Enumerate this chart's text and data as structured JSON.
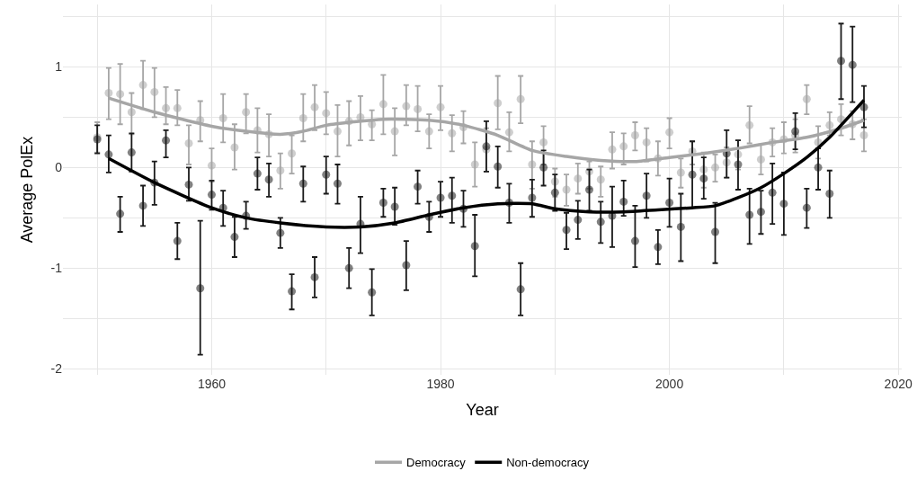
{
  "chart_data": {
    "type": "scatter",
    "xlabel": "Year",
    "ylabel": "Average PolEx",
    "xlim": [
      1947,
      2020.3
    ],
    "ylim": [
      -2.06,
      1.62
    ],
    "xticks": [
      {
        "value": 1950,
        "label": null
      },
      1960,
      {
        "value": 1970,
        "label": null
      },
      1980,
      {
        "value": 1990,
        "label": null
      },
      2000,
      {
        "value": 2010,
        "label": null
      },
      2020
    ],
    "yticks": [
      -2,
      {
        "value": -1.5,
        "label": null
      },
      -1,
      {
        "value": -0.5,
        "label": null
      },
      0,
      {
        "value": 0.5,
        "label": null
      },
      1,
      {
        "value": 1.5,
        "label": null
      }
    ],
    "grid": true,
    "legend": "bottom",
    "x": [
      1950,
      1951,
      1952,
      1953,
      1954,
      1955,
      1956,
      1957,
      1958,
      1959,
      1960,
      1961,
      1962,
      1963,
      1964,
      1965,
      1966,
      1967,
      1968,
      1969,
      1970,
      1971,
      1972,
      1973,
      1974,
      1975,
      1976,
      1977,
      1978,
      1979,
      1980,
      1981,
      1982,
      1983,
      1984,
      1985,
      1986,
      1987,
      1988,
      1989,
      1990,
      1991,
      1992,
      1993,
      1994,
      1995,
      1996,
      1997,
      1998,
      1999,
      2000,
      2001,
      2002,
      2003,
      2004,
      2005,
      2006,
      2007,
      2008,
      2009,
      2010,
      2011,
      2012,
      2013,
      2014,
      2015,
      2016,
      2017
    ],
    "series": [
      {
        "marker": "circle",
        "color": "#a6a6a6",
        "values": [
          0.3,
          0.74,
          0.73,
          0.55,
          0.82,
          0.75,
          0.59,
          0.59,
          0.24,
          0.47,
          0.02,
          0.49,
          0.2,
          0.55,
          0.37,
          0.33,
          -0.03,
          0.14,
          0.49,
          0.6,
          0.54,
          0.36,
          0.46,
          0.5,
          0.43,
          0.63,
          0.36,
          0.61,
          0.58,
          0.36,
          0.6,
          0.34,
          0.4,
          0.03,
          0.18,
          0.64,
          0.35,
          0.68,
          0.03,
          0.25,
          -0.14,
          -0.22,
          -0.11,
          -0.04,
          -0.12,
          0.18,
          0.21,
          0.32,
          0.25,
          0.09,
          0.35,
          -0.05,
          0.16,
          -0.02,
          0.0,
          0.05,
          0.13,
          0.42,
          0.08,
          0.25,
          0.28,
          0.32,
          0.68,
          0.25,
          0.42,
          0.48,
          0.43,
          0.32
        ],
        "errors": [
          [
            0.15,
            0.45
          ],
          [
            0.48,
            0.99
          ],
          [
            0.43,
            1.03
          ],
          [
            0.33,
            0.74
          ],
          [
            0.58,
            1.06
          ],
          [
            0.5,
            0.99
          ],
          [
            0.43,
            0.8
          ],
          [
            0.42,
            0.77
          ],
          [
            0.03,
            0.42
          ],
          [
            0.26,
            0.66
          ],
          [
            -0.14,
            0.19
          ],
          [
            0.25,
            0.73
          ],
          [
            -0.02,
            0.43
          ],
          [
            0.34,
            0.73
          ],
          [
            0.15,
            0.59
          ],
          [
            0.11,
            0.53
          ],
          [
            -0.21,
            0.14
          ],
          [
            -0.06,
            0.32
          ],
          [
            0.26,
            0.73
          ],
          [
            0.37,
            0.82
          ],
          [
            0.33,
            0.75
          ],
          [
            0.11,
            0.62
          ],
          [
            0.22,
            0.66
          ],
          [
            0.27,
            0.71
          ],
          [
            0.27,
            0.57
          ],
          [
            0.33,
            0.92
          ],
          [
            0.12,
            0.59
          ],
          [
            0.42,
            0.82
          ],
          [
            0.36,
            0.81
          ],
          [
            0.19,
            0.53
          ],
          [
            0.37,
            0.81
          ],
          [
            0.16,
            0.52
          ],
          [
            0.24,
            0.56
          ],
          [
            -0.19,
            0.25
          ],
          [
            -0.04,
            0.39
          ],
          [
            0.38,
            0.91
          ],
          [
            0.16,
            0.55
          ],
          [
            0.44,
            0.91
          ],
          [
            -0.21,
            0.26
          ],
          [
            0.03,
            0.41
          ],
          [
            -0.29,
            -0.01
          ],
          [
            -0.38,
            -0.07
          ],
          [
            -0.26,
            0.04
          ],
          [
            -0.21,
            0.06
          ],
          [
            -0.29,
            0.01
          ],
          [
            -0.01,
            0.35
          ],
          [
            0.03,
            0.34
          ],
          [
            0.17,
            0.45
          ],
          [
            0.06,
            0.39
          ],
          [
            -0.08,
            0.26
          ],
          [
            0.19,
            0.49
          ],
          [
            -0.2,
            0.09
          ],
          [
            0.03,
            0.26
          ],
          [
            -0.2,
            0.15
          ],
          [
            -0.14,
            0.13
          ],
          [
            -0.1,
            0.2
          ],
          [
            -0.02,
            0.27
          ],
          [
            0.24,
            0.61
          ],
          [
            -0.07,
            0.23
          ],
          [
            0.11,
            0.39
          ],
          [
            0.14,
            0.45
          ],
          [
            0.15,
            0.48
          ],
          [
            0.53,
            0.82
          ],
          [
            0.09,
            0.41
          ],
          [
            0.32,
            0.55
          ],
          [
            0.32,
            0.63
          ],
          [
            0.28,
            0.56
          ],
          [
            0.16,
            0.48
          ]
        ]
      },
      {
        "marker": "circle",
        "color": "#1a1a1a",
        "values": [
          0.28,
          0.13,
          -0.46,
          0.15,
          -0.38,
          -0.15,
          0.27,
          -0.73,
          -0.17,
          -1.2,
          -0.27,
          -0.4,
          -0.69,
          -0.48,
          -0.06,
          -0.12,
          -0.65,
          -1.23,
          -0.16,
          -1.09,
          -0.07,
          -0.16,
          -1.0,
          -0.56,
          -1.24,
          -0.35,
          -0.39,
          -0.97,
          -0.19,
          -0.49,
          -0.3,
          -0.28,
          -0.41,
          -0.78,
          0.21,
          0.01,
          -0.35,
          -1.21,
          -0.3,
          0.0,
          -0.25,
          -0.62,
          -0.52,
          -0.22,
          -0.54,
          -0.48,
          -0.34,
          -0.73,
          -0.28,
          -0.79,
          -0.35,
          -0.59,
          -0.07,
          -0.11,
          -0.64,
          0.14,
          0.03,
          -0.47,
          -0.44,
          -0.25,
          -0.36,
          0.36,
          -0.4,
          0.0,
          -0.26,
          1.06,
          1.02,
          0.6
        ],
        "errors": [
          [
            0.14,
            0.42
          ],
          [
            -0.05,
            0.32
          ],
          [
            -0.64,
            -0.29
          ],
          [
            -0.04,
            0.34
          ],
          [
            -0.58,
            -0.18
          ],
          [
            -0.37,
            0.06
          ],
          [
            0.1,
            0.37
          ],
          [
            -0.91,
            -0.55
          ],
          [
            -0.33,
            0.0
          ],
          [
            -1.86,
            -0.53
          ],
          [
            -0.42,
            -0.13
          ],
          [
            -0.58,
            -0.23
          ],
          [
            -0.89,
            -0.49
          ],
          [
            -0.61,
            -0.34
          ],
          [
            -0.22,
            0.1
          ],
          [
            -0.29,
            0.04
          ],
          [
            -0.8,
            -0.5
          ],
          [
            -1.41,
            -1.06
          ],
          [
            -0.34,
            0.01
          ],
          [
            -1.29,
            -0.89
          ],
          [
            -0.26,
            0.11
          ],
          [
            -0.36,
            0.03
          ],
          [
            -1.2,
            -0.8
          ],
          [
            -0.85,
            -0.29
          ],
          [
            -1.47,
            -1.01
          ],
          [
            -0.49,
            -0.21
          ],
          [
            -0.57,
            -0.2
          ],
          [
            -1.22,
            -0.73
          ],
          [
            -0.36,
            -0.03
          ],
          [
            -0.64,
            -0.34
          ],
          [
            -0.49,
            -0.14
          ],
          [
            -0.55,
            -0.1
          ],
          [
            -0.59,
            -0.23
          ],
          [
            -1.08,
            -0.47
          ],
          [
            -0.04,
            0.46
          ],
          [
            -0.2,
            0.21
          ],
          [
            -0.55,
            -0.16
          ],
          [
            -1.47,
            -0.95
          ],
          [
            -0.49,
            -0.12
          ],
          [
            -0.18,
            0.17
          ],
          [
            -0.43,
            -0.07
          ],
          [
            -0.81,
            -0.45
          ],
          [
            -0.71,
            -0.33
          ],
          [
            -0.43,
            -0.02
          ],
          [
            -0.75,
            -0.34
          ],
          [
            -0.79,
            -0.19
          ],
          [
            -0.48,
            -0.13
          ],
          [
            -0.99,
            -0.38
          ],
          [
            -0.5,
            -0.06
          ],
          [
            -0.96,
            -0.62
          ],
          [
            -0.59,
            -0.11
          ],
          [
            -0.93,
            -0.26
          ],
          [
            -0.4,
            0.26
          ],
          [
            -0.31,
            0.1
          ],
          [
            -0.95,
            -0.35
          ],
          [
            -0.1,
            0.37
          ],
          [
            -0.22,
            0.27
          ],
          [
            -0.76,
            -0.21
          ],
          [
            -0.66,
            -0.23
          ],
          [
            -0.56,
            0.04
          ],
          [
            -0.67,
            -0.05
          ],
          [
            0.18,
            0.54
          ],
          [
            -0.6,
            -0.21
          ],
          [
            -0.22,
            0.19
          ],
          [
            -0.5,
            -0.03
          ],
          [
            0.68,
            1.43
          ],
          [
            0.65,
            1.4
          ],
          [
            0.4,
            0.81
          ]
        ]
      },
      {
        "type": "line",
        "name": "Democracy",
        "color": "#a6a6a6",
        "line_style": "solid",
        "x": [
          1951,
          1955,
          1960,
          1963,
          1966,
          1968,
          1970,
          1975,
          1979,
          1982,
          1985,
          1988,
          1991,
          1994,
          1997,
          2000,
          2003,
          2006,
          2009,
          2012,
          2015,
          2017
        ],
        "values": [
          0.69,
          0.55,
          0.41,
          0.36,
          0.33,
          0.36,
          0.42,
          0.48,
          0.47,
          0.42,
          0.32,
          0.17,
          0.11,
          0.07,
          0.06,
          0.1,
          0.14,
          0.19,
          0.25,
          0.3,
          0.39,
          0.47
        ]
      },
      {
        "type": "line",
        "name": "Non-democracy",
        "color": "#000000",
        "line_style": "solid",
        "x": [
          1951,
          1955,
          1960,
          1963,
          1966,
          1970,
          1973,
          1976,
          1979,
          1982,
          1985,
          1988,
          1990,
          1993,
          1996,
          1999,
          2002,
          2004,
          2006,
          2008,
          2010,
          2012,
          2014,
          2017
        ],
        "values": [
          0.09,
          -0.15,
          -0.4,
          -0.5,
          -0.55,
          -0.59,
          -0.59,
          -0.55,
          -0.47,
          -0.4,
          -0.36,
          -0.36,
          -0.41,
          -0.44,
          -0.44,
          -0.42,
          -0.4,
          -0.38,
          -0.3,
          -0.2,
          -0.06,
          0.1,
          0.3,
          0.67
        ]
      }
    ]
  }
}
